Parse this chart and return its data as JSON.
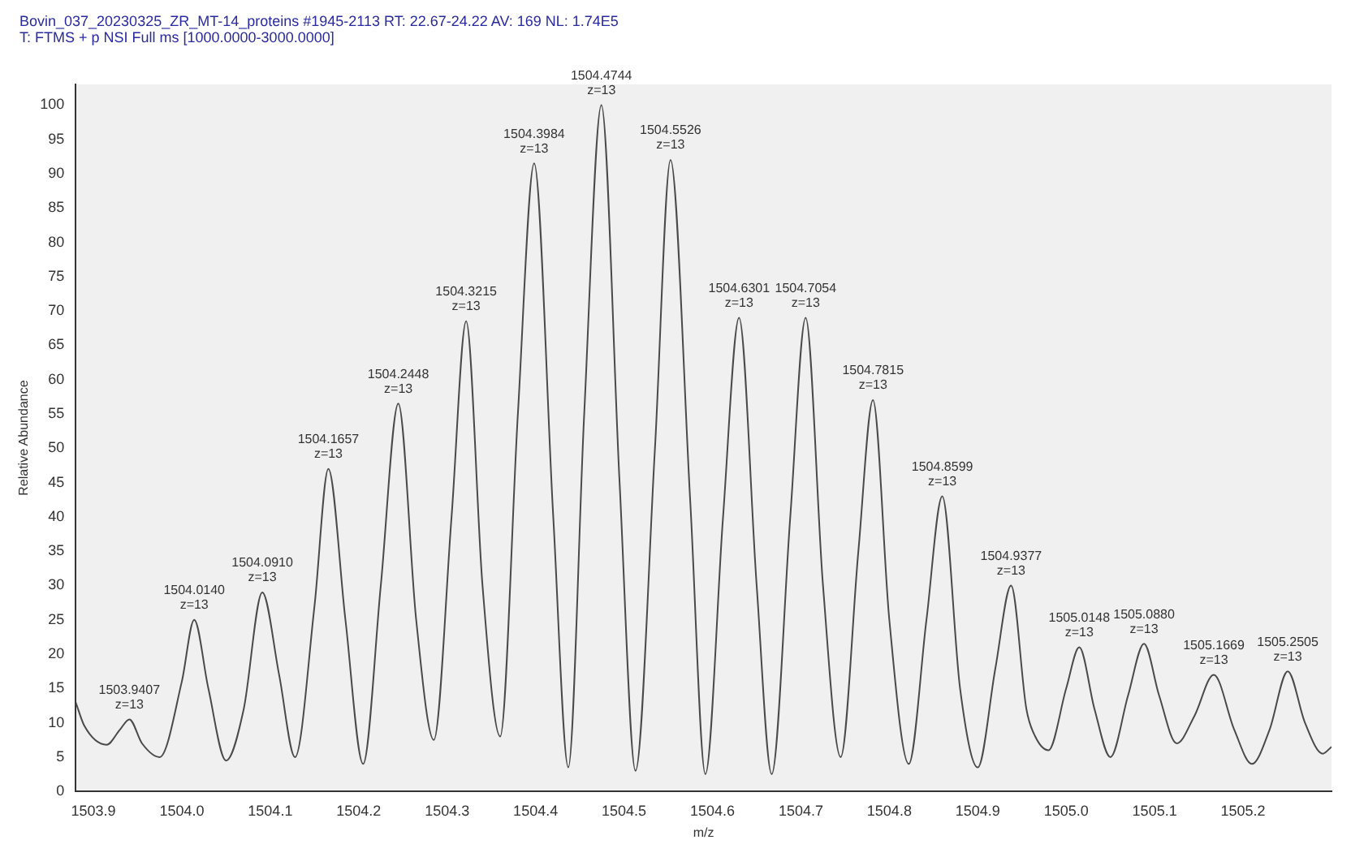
{
  "chart_data": {
    "type": "line",
    "title": "Bovin_037_20230325_ZR_MT-14_proteins #1945-2113  RT: 22.67-24.22  AV: 169  NL: 1.74E5",
    "subtitle": "T: FTMS + p NSI Full ms [1000.0000-3000.0000]",
    "xlabel": "m/z",
    "ylabel": "Relative Abundance",
    "series": [
      {
        "color": "#4a4a4a",
        "x": [
          1503.88,
          1503.89,
          1503.915,
          1503.93,
          1503.9407,
          1503.955,
          1503.975,
          1504.0,
          1504.014,
          1504.03,
          1504.05,
          1504.07,
          1504.091,
          1504.11,
          1504.128,
          1504.15,
          1504.1657,
          1504.185,
          1504.205,
          1504.225,
          1504.2448,
          1504.265,
          1504.285,
          1504.305,
          1504.3215,
          1504.34,
          1504.36,
          1504.38,
          1504.3984,
          1504.42,
          1504.437,
          1504.455,
          1504.4744,
          1504.495,
          1504.513,
          1504.535,
          1504.5526,
          1504.575,
          1504.592,
          1504.612,
          1504.6301,
          1504.65,
          1504.667,
          1504.688,
          1504.7054,
          1504.725,
          1504.745,
          1504.765,
          1504.7815,
          1504.8,
          1504.822,
          1504.842,
          1504.8599,
          1504.88,
          1504.9,
          1504.92,
          1504.9377,
          1504.955,
          1504.965,
          1504.98,
          1505.0,
          1505.0148,
          1505.032,
          1505.05,
          1505.07,
          1505.088,
          1505.105,
          1505.125,
          1505.145,
          1505.1669,
          1505.19,
          1505.21,
          1505.23,
          1505.2505,
          1505.27,
          1505.29,
          1505.3
        ],
        "values": [
          13,
          9.5,
          6.8,
          9,
          10.5,
          7,
          5,
          16,
          25,
          15,
          4.5,
          12,
          29,
          17,
          5,
          27,
          47,
          25,
          4,
          30,
          56.5,
          25,
          7.5,
          40,
          68.5,
          30,
          8,
          55,
          91.5,
          40,
          3.5,
          55,
          100,
          45,
          3,
          50,
          92,
          42,
          2.5,
          40,
          69,
          30,
          2.5,
          40,
          69,
          30,
          5,
          35,
          57,
          25,
          4,
          25,
          43,
          15,
          3.5,
          18,
          30,
          12,
          8,
          6,
          15,
          21,
          12,
          5,
          14,
          21.5,
          14,
          7,
          11,
          17,
          9,
          4,
          9,
          17.5,
          10,
          5.5,
          6.5
        ]
      }
    ],
    "annotations": [
      {
        "text": "1503.9407\nz=13",
        "x": 1503.9407,
        "y": 10.5
      },
      {
        "text": "1504.0140\nz=13",
        "x": 1504.014,
        "y": 25
      },
      {
        "text": "1504.0910\nz=13",
        "x": 1504.091,
        "y": 29
      },
      {
        "text": "1504.1657\nz=13",
        "x": 1504.1657,
        "y": 47
      },
      {
        "text": "1504.2448\nz=13",
        "x": 1504.2448,
        "y": 56.5
      },
      {
        "text": "1504.3215\nz=13",
        "x": 1504.3215,
        "y": 68.5
      },
      {
        "text": "1504.3984\nz=13",
        "x": 1504.3984,
        "y": 91.5
      },
      {
        "text": "1504.4744\nz=13",
        "x": 1504.4744,
        "y": 100
      },
      {
        "text": "1504.5526\nz=13",
        "x": 1504.5526,
        "y": 92
      },
      {
        "text": "1504.6301\nz=13",
        "x": 1504.6301,
        "y": 69
      },
      {
        "text": "1504.7054\nz=13",
        "x": 1504.7054,
        "y": 69
      },
      {
        "text": "1504.7815\nz=13",
        "x": 1504.7815,
        "y": 57
      },
      {
        "text": "1504.8599\nz=13",
        "x": 1504.8599,
        "y": 43
      },
      {
        "text": "1504.9377\nz=13",
        "x": 1504.9377,
        "y": 30
      },
      {
        "text": "1505.0148\nz=13",
        "x": 1505.0148,
        "y": 21
      },
      {
        "text": "1505.0880\nz=13",
        "x": 1505.088,
        "y": 21.5
      },
      {
        "text": "1505.1669\nz=13",
        "x": 1505.1669,
        "y": 17
      },
      {
        "text": "1505.2505\nz=13",
        "x": 1505.2505,
        "y": 17.5
      }
    ],
    "xlim": [
      1503.88,
      1505.3
    ],
    "xticks": [
      {
        "value": 1503.9,
        "label": "1503.9"
      },
      {
        "value": 1504.0,
        "label": "1504.0"
      },
      {
        "value": 1504.1,
        "label": "1504.1"
      },
      {
        "value": 1504.2,
        "label": "1504.2"
      },
      {
        "value": 1504.3,
        "label": "1504.3"
      },
      {
        "value": 1504.4,
        "label": "1504.4"
      },
      {
        "value": 1504.5,
        "label": "1504.5"
      },
      {
        "value": 1504.6,
        "label": "1504.6"
      },
      {
        "value": 1504.7,
        "label": "1504.7"
      },
      {
        "value": 1504.8,
        "label": "1504.8"
      },
      {
        "value": 1504.9,
        "label": "1504.9"
      },
      {
        "value": 1505.0,
        "label": "1505.0"
      },
      {
        "value": 1505.1,
        "label": "1505.1"
      },
      {
        "value": 1505.2,
        "label": "1505.2"
      }
    ],
    "ylim": [
      0,
      103
    ],
    "yticks": [
      0,
      5,
      10,
      15,
      20,
      25,
      30,
      35,
      40,
      45,
      50,
      55,
      60,
      65,
      70,
      75,
      80,
      85,
      90,
      95,
      100
    ],
    "grid": false,
    "legend": false,
    "marker": "none",
    "line_style": "solid"
  }
}
